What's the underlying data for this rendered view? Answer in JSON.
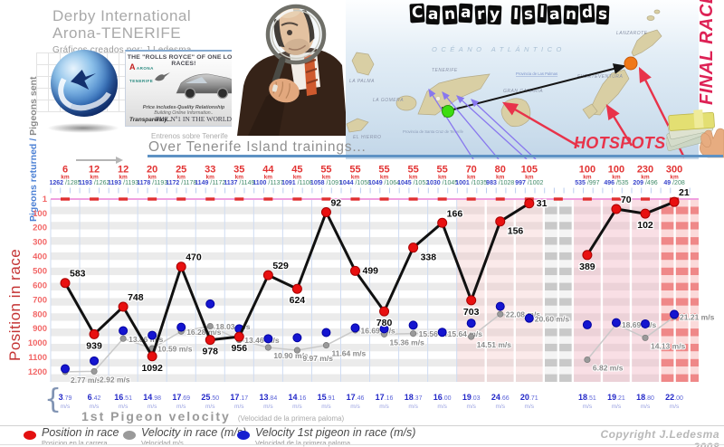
{
  "header": {
    "title_line1": "Derby International",
    "title_line2": "Arona-TENERIFE",
    "credit": "Gráficos creados por: J.Ledesma",
    "banner": {
      "title": "THE \"ROLLS ROYCE\" OF ONE LOFT RACES!",
      "loft_letter": "A",
      "loft_line1": "ARONA",
      "loft_line2": "TENERIFE",
      "line1": "Price includes-Quality Relationship",
      "line2": "Building Online Information..",
      "line3": "Transparency...",
      "line4": "THE Nº1 IN THE WORLD"
    },
    "map": {
      "title": "Canary Islands",
      "ocean_label": "OCÉANO ATLÁNTICO",
      "islands": [
        "LA PALMA",
        "TENERIFE",
        "LA GOMERA",
        "EL HIERRO",
        "GRAN CANARIA",
        "FUERTEVENTURA",
        "LANZAROTE"
      ],
      "province_north": "Provincia de Las Palmas",
      "province_south": "Provincia de Santa Cruz de Tenerife",
      "hotspots_label": "HOTSPOTS",
      "final_race_label": "FINAL RACE"
    },
    "trainings_label_es": "Entrenos sobre Tenerife",
    "trainings_label_en": "Over Tenerife Island trainings..."
  },
  "axes": {
    "y_label": "Position in race",
    "returned_label_blue": "Pigeons returned /",
    "returned_label_gray": " Pigeons sent",
    "y_ticks": [
      1,
      100,
      200,
      300,
      400,
      500,
      600,
      700,
      800,
      900,
      1000,
      1100,
      1200
    ],
    "km_unit": "km",
    "velocity_unit": "m/s"
  },
  "chart_data": {
    "type": "line",
    "title": "Over Tenerife Island trainings...",
    "ylabel": "Position in race",
    "ylim": [
      1,
      1200
    ],
    "gap_after_index": 16,
    "series_names": [
      "Position in race",
      "Velocity in race (m/s)",
      "Velocity 1st pigeon in race (m/s)"
    ],
    "columns": [
      {
        "km": "6",
        "returned": "1262",
        "sent": "1285",
        "position": 583,
        "velocity_race": "2.77",
        "velocity_first": "3.79"
      },
      {
        "km": "12",
        "returned": "1193",
        "sent": "1262",
        "position": 939,
        "velocity_race": "2.92",
        "velocity_first": "6.42"
      },
      {
        "km": "12",
        "returned": "1193",
        "sent": "1193",
        "position": 748,
        "velocity_race": "13.86",
        "velocity_first": "16.51"
      },
      {
        "km": "20",
        "returned": "1178",
        "sent": "1193",
        "position": 1092,
        "velocity_race": "10.59",
        "velocity_first": "14.98"
      },
      {
        "km": "25",
        "returned": "1172",
        "sent": "1178",
        "position": 470,
        "velocity_race": "16.28",
        "velocity_first": "17.69"
      },
      {
        "km": "33",
        "returned": "1149",
        "sent": "1172",
        "position": 978,
        "velocity_race": "18.03",
        "velocity_first": "25.50"
      },
      {
        "km": "35",
        "returned": "1137",
        "sent": "1149",
        "position": 956,
        "velocity_race": "13.46",
        "velocity_first": "17.17"
      },
      {
        "km": "44",
        "returned": "1100",
        "sent": "1137",
        "position": 529,
        "velocity_race": "10.90",
        "velocity_first": "13.84"
      },
      {
        "km": "45",
        "returned": "1091",
        "sent": "1108",
        "position": 624,
        "velocity_race": "9.97",
        "velocity_first": "14.16"
      },
      {
        "km": "55",
        "returned": "1058",
        "sent": "1091",
        "position": 92,
        "velocity_race": "11.64",
        "velocity_first": "15.91"
      },
      {
        "km": "55",
        "returned": "1044",
        "sent": "1058",
        "position": 499,
        "velocity_race": "16.69",
        "velocity_first": "17.46"
      },
      {
        "km": "55",
        "returned": "1049",
        "sent": "1064",
        "position": 780,
        "velocity_race": "15.36",
        "velocity_first": "17.16"
      },
      {
        "km": "55",
        "returned": "1045",
        "sent": "1052",
        "position": 338,
        "velocity_race": "15.56",
        "velocity_first": "18.37"
      },
      {
        "km": "55",
        "returned": "1030",
        "sent": "1045",
        "position": 166,
        "velocity_race": "15.64",
        "velocity_first": "16.00"
      },
      {
        "km": "70",
        "returned": "1001",
        "sent": "1035",
        "position": 703,
        "velocity_race": "14.51",
        "velocity_first": "19.03"
      },
      {
        "km": "80",
        "returned": "983",
        "sent": "1028",
        "position": 156,
        "velocity_race": "22.08",
        "velocity_first": "24.66"
      },
      {
        "km": "105",
        "returned": "997",
        "sent": "1002",
        "position": 31,
        "velocity_race": "20.60",
        "velocity_first": "20.71"
      },
      {
        "km": "100",
        "returned": "535",
        "sent": "997",
        "position": 389,
        "velocity_race": "6.82",
        "velocity_first": "18.51"
      },
      {
        "km": "100",
        "returned": "496",
        "sent": "535",
        "position": 70,
        "velocity_race": "18.69",
        "velocity_first": "19.21"
      },
      {
        "km": "230",
        "returned": "209",
        "sent": "496",
        "position": 102,
        "velocity_race": "14.13",
        "velocity_first": "18.80"
      },
      {
        "km": "300",
        "returned": "49",
        "sent": "208",
        "position": 21,
        "velocity_race": "21.21",
        "velocity_first": "22.00"
      }
    ]
  },
  "footer": {
    "velocity_title": "1st Pigeon velocity",
    "velocity_subtitle": "(Velocidad de la primera paloma)",
    "legend": [
      {
        "label": "Position in race",
        "sublabel": "Posicion en la carrera",
        "color": "#e31010"
      },
      {
        "label": "Velocity in race (m/s)",
        "sublabel": "Velocidad m/s",
        "color": "#9a9a9a"
      },
      {
        "label": "Velocity 1st pigeon in race (m/s)",
        "sublabel": "Velocidad de la primera paloma",
        "color": "#1620d0"
      }
    ],
    "copyright": "Copyright J.Ledesma 2008"
  },
  "colors": {
    "position_line": "#111111",
    "position_dot": "#e81010",
    "race_velocity": "#9a9a9a",
    "first_pigeon_velocity": "#1515d0",
    "km_label": "#e23333",
    "returned_value": "#3a46cc",
    "sent_value": "#3f8a68",
    "hotspots": "#e8334a",
    "final_race": "#dd2255"
  }
}
